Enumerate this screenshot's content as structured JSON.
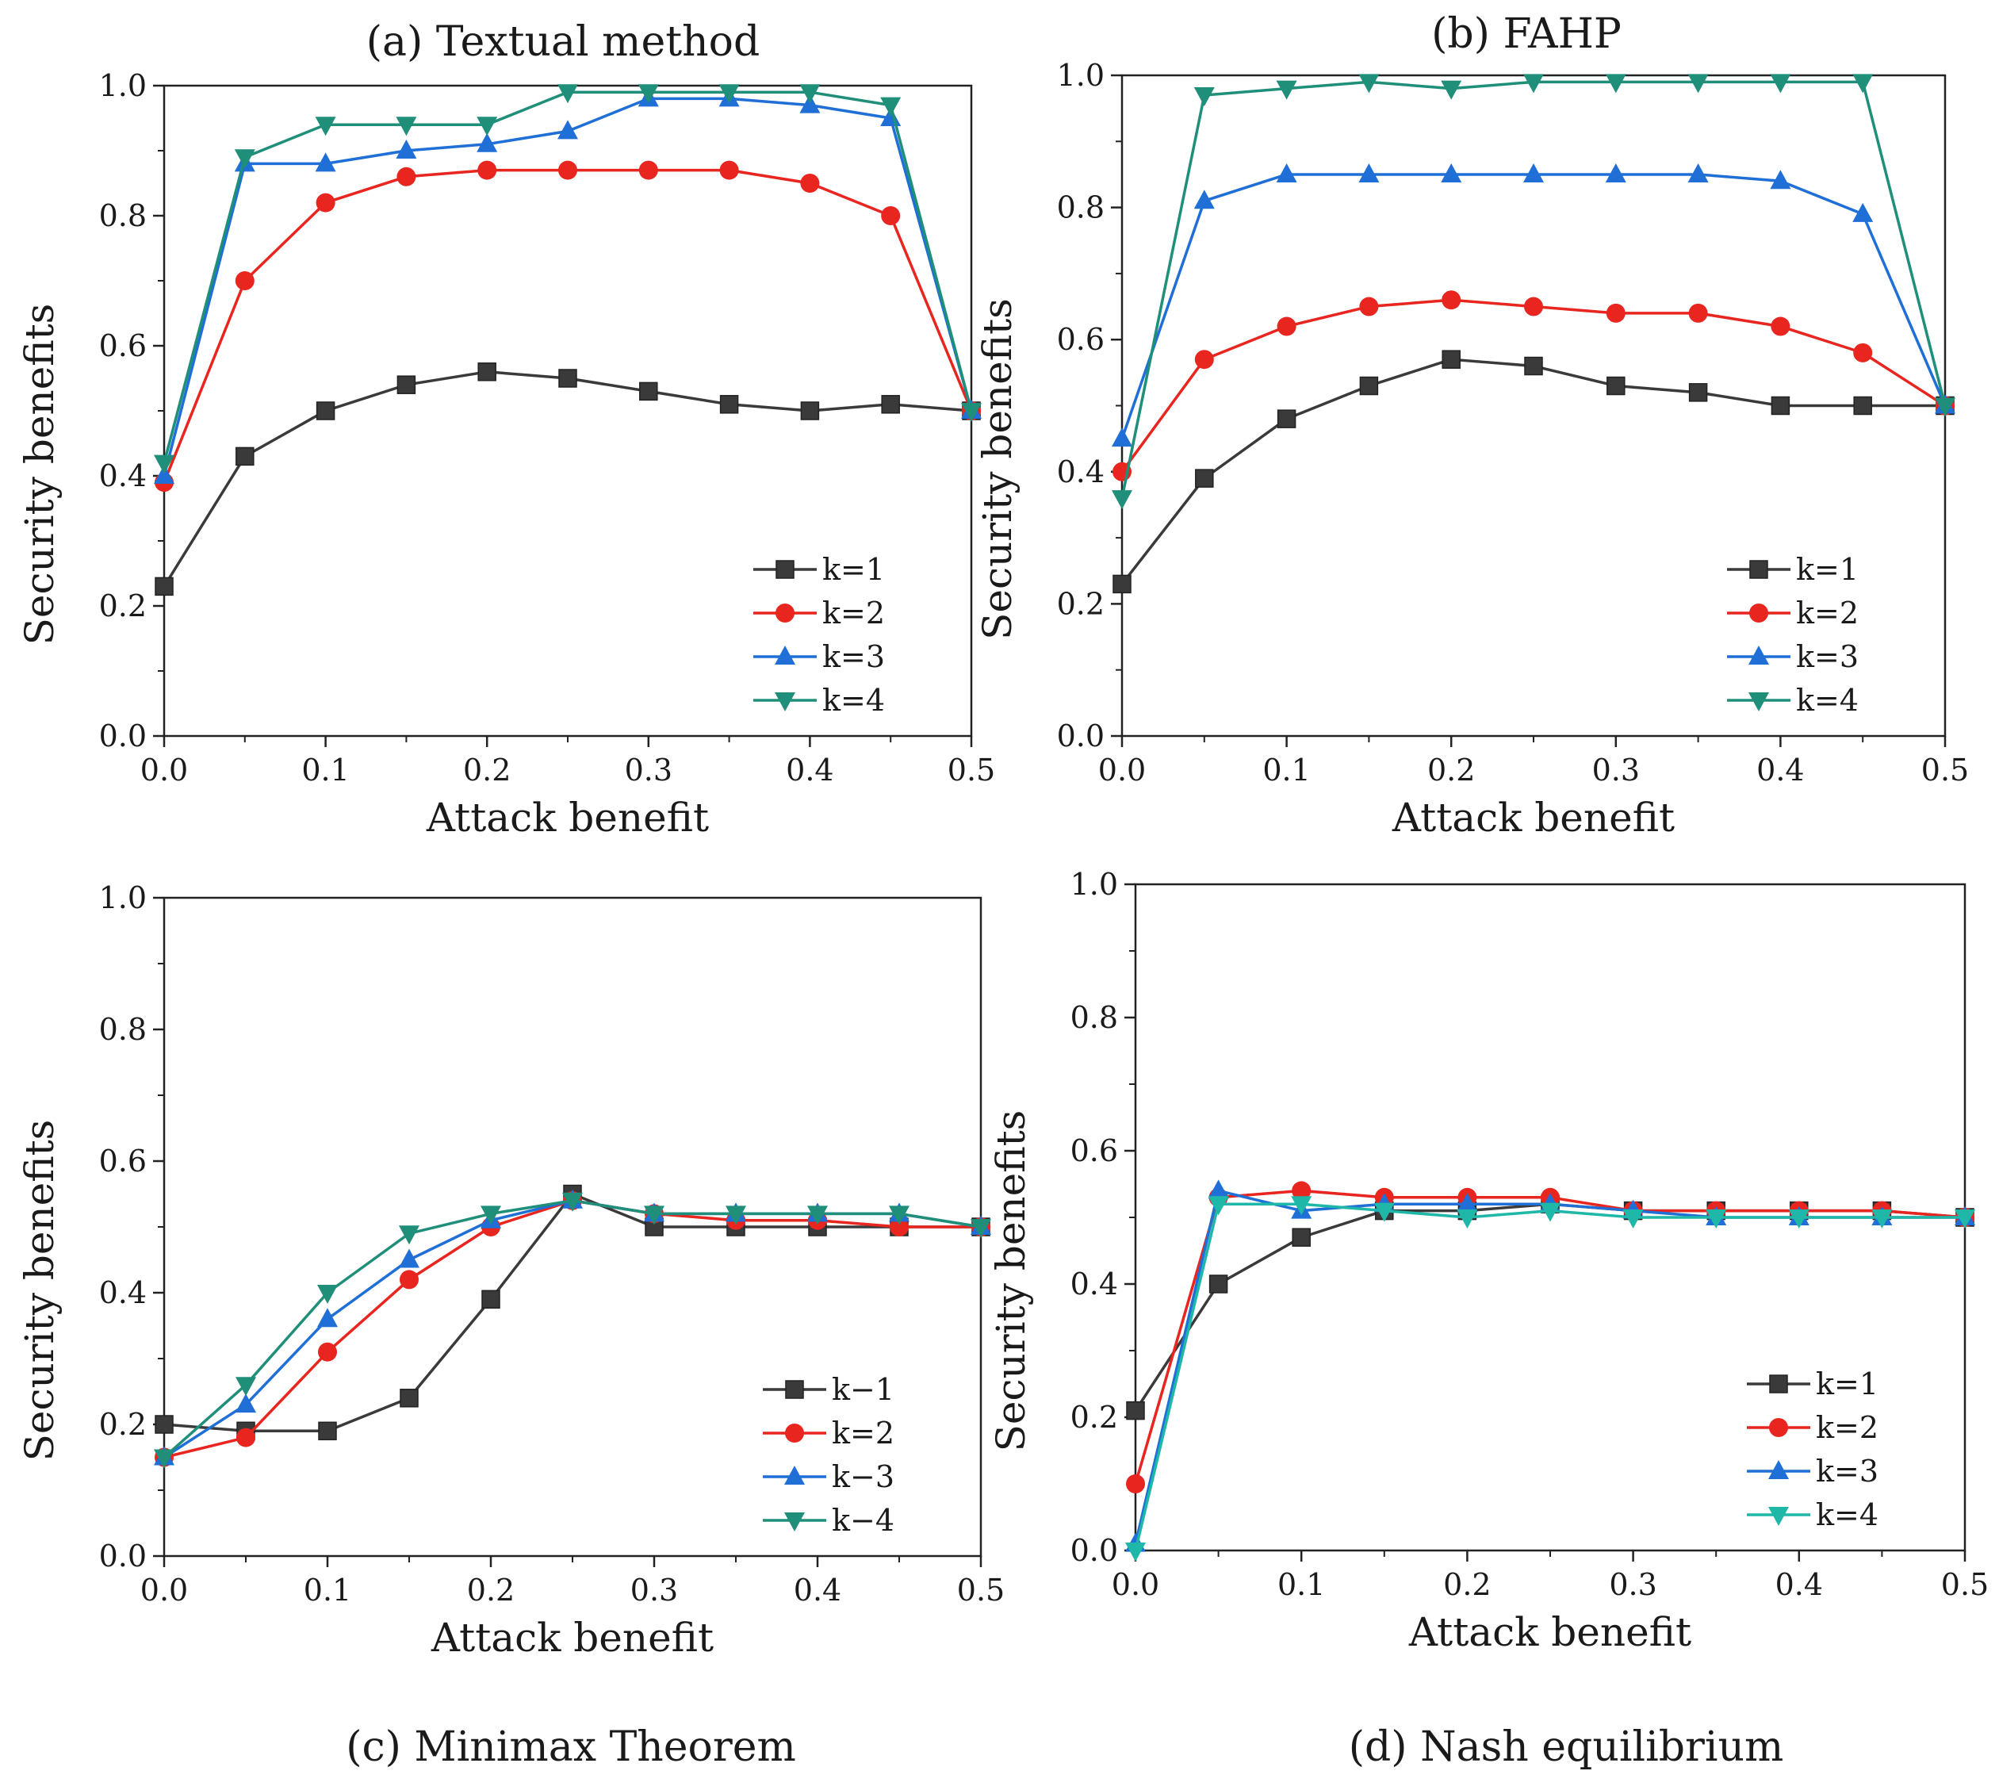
{
  "chart_data": [
    {
      "type": "line",
      "title": "(a) Textual method",
      "xlabel": "Attack benefit",
      "ylabel": "Security benefits",
      "xlim": [
        0,
        0.5
      ],
      "ylim": [
        0,
        1.0
      ],
      "xticks": [
        "0.0",
        "0.1",
        "0.2",
        "0.3",
        "0.4",
        "0.5"
      ],
      "yticks": [
        "0.0",
        "0.2",
        "0.4",
        "0.6",
        "0.8",
        "1.0"
      ],
      "legend_position": "bottom-right",
      "x": [
        0,
        0.05,
        0.1,
        0.15,
        0.2,
        0.25,
        0.3,
        0.35,
        0.4,
        0.45,
        0.5
      ],
      "series": [
        {
          "name": "k=1",
          "color": "#3a3a3a",
          "marker": "square",
          "values": [
            0.23,
            0.43,
            0.5,
            0.54,
            0.56,
            0.55,
            0.53,
            0.51,
            0.5,
            0.51,
            0.5
          ]
        },
        {
          "name": "k=2",
          "color": "#e8251f",
          "marker": "circle",
          "values": [
            0.39,
            0.7,
            0.82,
            0.86,
            0.87,
            0.87,
            0.87,
            0.87,
            0.85,
            0.8,
            0.5
          ]
        },
        {
          "name": "k=3",
          "color": "#1f6fd6",
          "marker": "triangle-up",
          "values": [
            0.4,
            0.88,
            0.88,
            0.9,
            0.91,
            0.93,
            0.98,
            0.98,
            0.97,
            0.95,
            0.5
          ]
        },
        {
          "name": "k=4",
          "color": "#1f8f7a",
          "marker": "triangle-down",
          "values": [
            0.42,
            0.89,
            0.94,
            0.94,
            0.94,
            0.99,
            0.99,
            0.99,
            0.99,
            0.97,
            0.5
          ]
        }
      ]
    },
    {
      "type": "line",
      "title": "(b) FAHP",
      "xlabel": "Attack benefit",
      "ylabel": "Security benefits",
      "xlim": [
        0,
        0.5
      ],
      "ylim": [
        0,
        1.0
      ],
      "xticks": [
        "0.0",
        "0.1",
        "0.2",
        "0.3",
        "0.4",
        "0.5"
      ],
      "yticks": [
        "0.0",
        "0.2",
        "0.4",
        "0.6",
        "0.8",
        "1.0"
      ],
      "legend_position": "bottom-right",
      "x": [
        0,
        0.05,
        0.1,
        0.15,
        0.2,
        0.25,
        0.3,
        0.35,
        0.4,
        0.45,
        0.5
      ],
      "series": [
        {
          "name": "k=1",
          "color": "#3a3a3a",
          "marker": "square",
          "values": [
            0.23,
            0.39,
            0.48,
            0.53,
            0.57,
            0.56,
            0.53,
            0.52,
            0.5,
            0.5,
            0.5
          ]
        },
        {
          "name": "k=2",
          "color": "#e8251f",
          "marker": "circle",
          "values": [
            0.4,
            0.57,
            0.62,
            0.65,
            0.66,
            0.65,
            0.64,
            0.64,
            0.62,
            0.58,
            0.5
          ]
        },
        {
          "name": "k=3",
          "color": "#1f6fd6",
          "marker": "triangle-up",
          "values": [
            0.45,
            0.81,
            0.85,
            0.85,
            0.85,
            0.85,
            0.85,
            0.85,
            0.84,
            0.79,
            0.5
          ]
        },
        {
          "name": "k=4",
          "color": "#1f8f7a",
          "marker": "triangle-down",
          "values": [
            0.36,
            0.97,
            0.98,
            0.99,
            0.98,
            0.99,
            0.99,
            0.99,
            0.99,
            0.99,
            0.5
          ]
        }
      ]
    },
    {
      "type": "line",
      "title": "(c) Minimax Theorem",
      "xlabel": "Attack benefit",
      "ylabel": "Security benefits",
      "xlim": [
        0,
        0.5
      ],
      "ylim": [
        0,
        1.0
      ],
      "xticks": [
        "0.0",
        "0.1",
        "0.2",
        "0.3",
        "0.4",
        "0.5"
      ],
      "yticks": [
        "0.0",
        "0.2",
        "0.4",
        "0.6",
        "0.8",
        "1.0"
      ],
      "legend_position": "bottom-right",
      "x": [
        0,
        0.05,
        0.1,
        0.15,
        0.2,
        0.25,
        0.3,
        0.35,
        0.4,
        0.45,
        0.5
      ],
      "series": [
        {
          "name": "k−1",
          "color": "#3a3a3a",
          "marker": "square",
          "values": [
            0.2,
            0.19,
            0.19,
            0.24,
            0.39,
            0.55,
            0.5,
            0.5,
            0.5,
            0.5,
            0.5
          ]
        },
        {
          "name": "k=2",
          "color": "#e8251f",
          "marker": "circle",
          "values": [
            0.15,
            0.18,
            0.31,
            0.42,
            0.5,
            0.54,
            0.52,
            0.51,
            0.51,
            0.5,
            0.5
          ]
        },
        {
          "name": "k−3",
          "color": "#1f6fd6",
          "marker": "triangle-up",
          "values": [
            0.15,
            0.23,
            0.36,
            0.45,
            0.51,
            0.54,
            0.52,
            0.52,
            0.52,
            0.52,
            0.5
          ]
        },
        {
          "name": "k−4",
          "color": "#1f8f7a",
          "marker": "triangle-down",
          "values": [
            0.15,
            0.26,
            0.4,
            0.49,
            0.52,
            0.54,
            0.52,
            0.52,
            0.52,
            0.52,
            0.5
          ]
        }
      ]
    },
    {
      "type": "line",
      "title": "(d) Nash equilibrium",
      "xlabel": "Attack benefit",
      "ylabel": "Security benefits",
      "xlim": [
        0,
        0.5
      ],
      "ylim": [
        0,
        1.0
      ],
      "xticks": [
        "0.0",
        "0.1",
        "0.2",
        "0.3",
        "0.4",
        "0.5"
      ],
      "yticks": [
        "0.0",
        "0.2",
        "0.4",
        "0.6",
        "0.8",
        "1.0"
      ],
      "legend_position": "bottom-right",
      "x": [
        0,
        0.05,
        0.1,
        0.15,
        0.2,
        0.25,
        0.3,
        0.35,
        0.4,
        0.45,
        0.5
      ],
      "series": [
        {
          "name": "k=1",
          "color": "#3a3a3a",
          "marker": "square",
          "values": [
            0.21,
            0.4,
            0.47,
            0.51,
            0.51,
            0.52,
            0.51,
            0.51,
            0.51,
            0.51,
            0.5
          ]
        },
        {
          "name": "k=2",
          "color": "#e8251f",
          "marker": "circle",
          "values": [
            0.1,
            0.53,
            0.54,
            0.53,
            0.53,
            0.53,
            0.51,
            0.51,
            0.51,
            0.51,
            0.5
          ]
        },
        {
          "name": "k=3",
          "color": "#1f6fd6",
          "marker": "triangle-up",
          "values": [
            0.01,
            0.54,
            0.51,
            0.52,
            0.52,
            0.52,
            0.51,
            0.5,
            0.5,
            0.5,
            0.5
          ]
        },
        {
          "name": "k=4",
          "color": "#1fb8a8",
          "marker": "triangle-down",
          "values": [
            0.0,
            0.52,
            0.52,
            0.51,
            0.5,
            0.51,
            0.5,
            0.5,
            0.5,
            0.5,
            0.5
          ]
        }
      ]
    }
  ]
}
